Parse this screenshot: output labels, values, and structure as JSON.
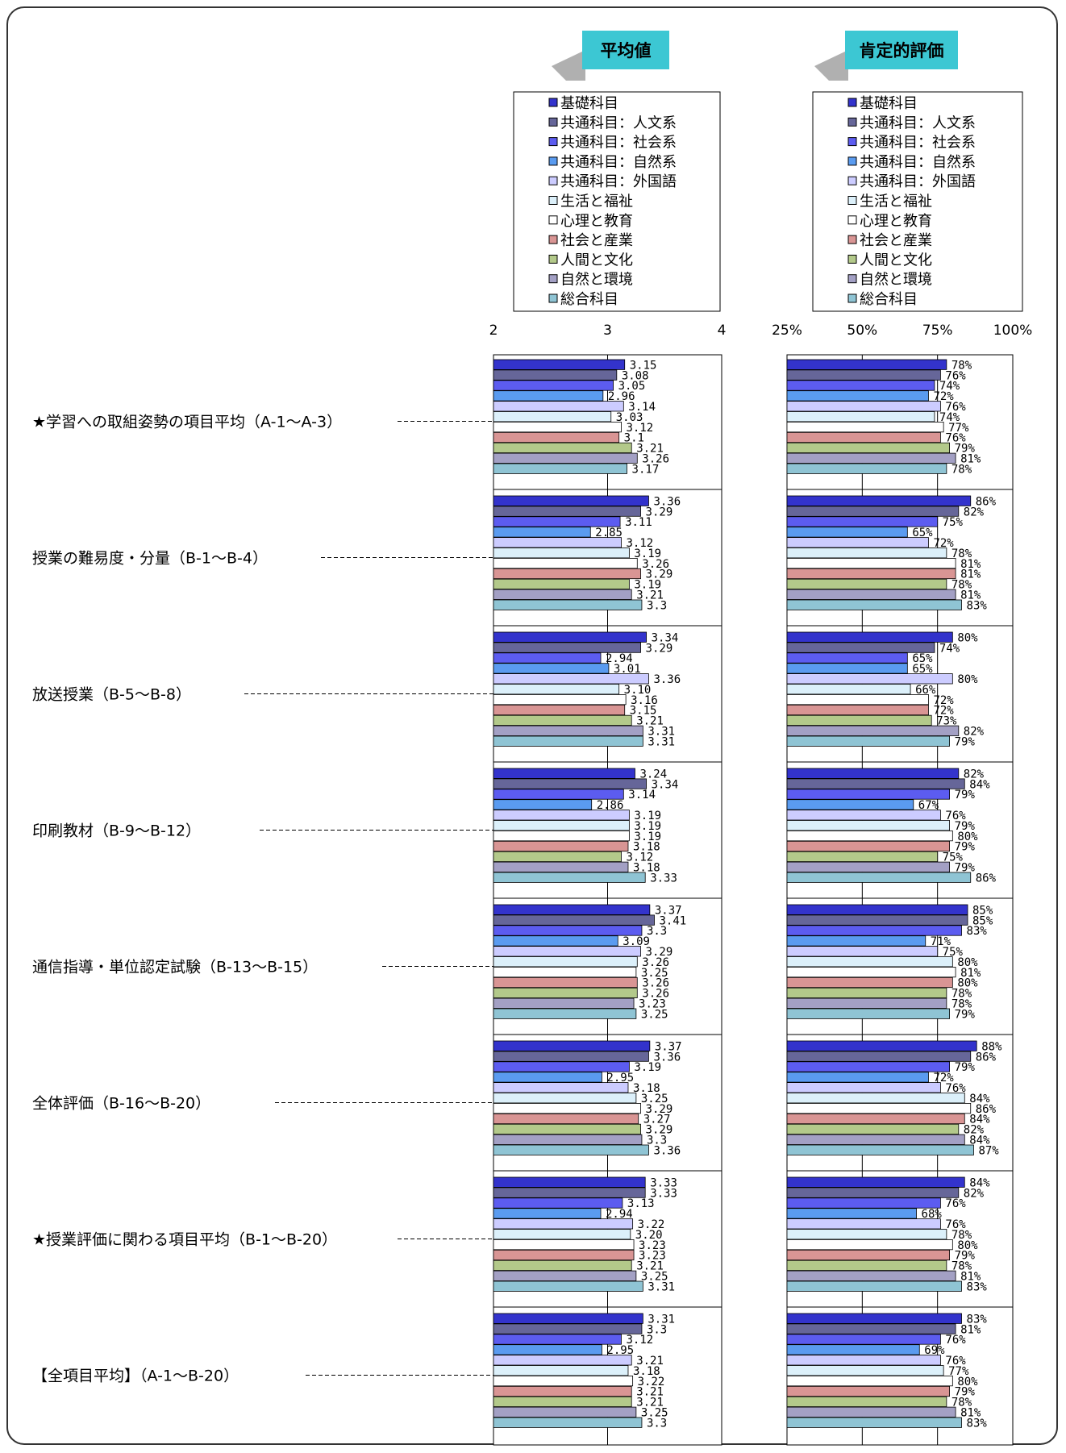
{
  "chart_data": [
    {
      "type": "bar",
      "orientation": "horizontal",
      "title": "平均値",
      "xlim": [
        2,
        4
      ],
      "ticks": [
        "2",
        "3",
        "4"
      ],
      "categories": [
        "★学習への取組姿勢の項目平均（A-1～A-3）",
        "授業の難易度・分量（B-1～B-4）",
        "放送授業（B-5～B-8）",
        "印刷教材（B-9～B-12）",
        "通信指導・単位認定試験（B-13～B-15）",
        "全体評価（B-16～B-20）",
        "★授業評価に関わる項目平均（B-1～B-20）",
        "【全項目平均】（A-1～B-20）"
      ],
      "series": [
        {
          "name": "基礎科目",
          "color": "#3333cc",
          "values": [
            3.15,
            3.36,
            3.34,
            3.24,
            3.37,
            3.37,
            3.33,
            3.31
          ],
          "labels": [
            "3.15",
            "3.36",
            "3.34",
            "3.24",
            "3.37",
            "3.37",
            "3.33",
            "3.31"
          ]
        },
        {
          "name": "共通科目：人文系",
          "color": "#666699",
          "values": [
            3.08,
            3.29,
            3.29,
            3.34,
            3.41,
            3.36,
            3.33,
            3.3
          ],
          "labels": [
            "3.08",
            "3.29",
            "3.29",
            "3.34",
            "3.41",
            "3.36",
            "3.33",
            "3.3"
          ]
        },
        {
          "name": "共通科目：社会系",
          "color": "#5c5cf0",
          "values": [
            3.05,
            3.11,
            2.94,
            3.14,
            3.3,
            3.19,
            3.13,
            3.12
          ],
          "labels": [
            "3.05",
            "3.11",
            "2.94",
            "3.14",
            "3.3",
            "3.19",
            "3.13",
            "3.12"
          ]
        },
        {
          "name": "共通科目：自然系",
          "color": "#5a9bf0",
          "values": [
            2.96,
            2.85,
            3.01,
            2.86,
            3.09,
            2.95,
            2.94,
            2.95
          ],
          "labels": [
            "2.96",
            "2.85",
            "3.01",
            "2.86",
            "3.09",
            "2.95",
            "2.94",
            "2.95"
          ]
        },
        {
          "name": "共通科目：外国語",
          "color": "#ccccff",
          "values": [
            3.14,
            3.12,
            3.36,
            3.19,
            3.29,
            3.18,
            3.22,
            3.21
          ],
          "labels": [
            "3.14",
            "3.12",
            "3.36",
            "3.19",
            "3.29",
            "3.18",
            "3.22",
            "3.21"
          ]
        },
        {
          "name": "生活と福祉",
          "color": "#dcf0fa",
          "values": [
            3.03,
            3.19,
            3.1,
            3.19,
            3.26,
            3.25,
            3.2,
            3.18
          ],
          "labels": [
            "3.03",
            "3.19",
            "3.10",
            "3.19",
            "3.26",
            "3.25",
            "3.20",
            "3.18"
          ]
        },
        {
          "name": "心理と教育",
          "color": "#ffffff",
          "values": [
            3.12,
            3.26,
            3.16,
            3.19,
            3.25,
            3.29,
            3.23,
            3.22
          ],
          "labels": [
            "3.12",
            "3.26",
            "3.16",
            "3.19",
            "3.25",
            "3.29",
            "3.23",
            "3.22"
          ]
        },
        {
          "name": "社会と産業",
          "color": "#d99594",
          "values": [
            3.1,
            3.29,
            3.15,
            3.18,
            3.26,
            3.27,
            3.23,
            3.21
          ],
          "labels": [
            "3.1",
            "3.29",
            "3.15",
            "3.18",
            "3.26",
            "3.27",
            "3.23",
            "3.21"
          ]
        },
        {
          "name": "人間と文化",
          "color": "#b3c98a",
          "values": [
            3.21,
            3.19,
            3.21,
            3.12,
            3.26,
            3.29,
            3.21,
            3.21
          ],
          "labels": [
            "3.21",
            "3.19",
            "3.21",
            "3.12",
            "3.26",
            "3.29",
            "3.21",
            "3.21"
          ]
        },
        {
          "name": "自然と環境",
          "color": "#a3a0c4",
          "values": [
            3.26,
            3.21,
            3.31,
            3.18,
            3.23,
            3.3,
            3.25,
            3.25
          ],
          "labels": [
            "3.26",
            "3.21",
            "3.31",
            "3.18",
            "3.23",
            "3.3",
            "3.25",
            "3.25"
          ]
        },
        {
          "name": "総合科目",
          "color": "#8fc4d4",
          "values": [
            3.17,
            3.3,
            3.31,
            3.33,
            3.25,
            3.36,
            3.31,
            3.3
          ],
          "labels": [
            "3.17",
            "3.3",
            "3.31",
            "3.33",
            "3.25",
            "3.36",
            "3.31",
            "3.3"
          ]
        }
      ]
    },
    {
      "type": "bar",
      "orientation": "horizontal",
      "title": "肯定的評価",
      "xlim": [
        25,
        100
      ],
      "ticks": [
        "25%",
        "50%",
        "75%",
        "100%"
      ],
      "series": [
        {
          "name": "基礎科目",
          "color": "#3333cc",
          "values": [
            78,
            86,
            80,
            82,
            85,
            88,
            84,
            83
          ]
        },
        {
          "name": "共通科目：人文系",
          "color": "#666699",
          "values": [
            76,
            82,
            74,
            84,
            85,
            86,
            82,
            81
          ]
        },
        {
          "name": "共通科目：社会系",
          "color": "#5c5cf0",
          "values": [
            74,
            75,
            65,
            79,
            83,
            79,
            76,
            76
          ]
        },
        {
          "name": "共通科目：自然系",
          "color": "#5a9bf0",
          "values": [
            72,
            65,
            65,
            67,
            71,
            72,
            68,
            69
          ]
        },
        {
          "name": "共通科目：外国語",
          "color": "#ccccff",
          "values": [
            76,
            72,
            80,
            76,
            75,
            76,
            76,
            76
          ]
        },
        {
          "name": "生活と福祉",
          "color": "#dcf0fa",
          "values": [
            74,
            78,
            66,
            79,
            80,
            84,
            78,
            77
          ]
        },
        {
          "name": "心理と教育",
          "color": "#ffffff",
          "values": [
            77,
            81,
            72,
            80,
            81,
            86,
            80,
            80
          ]
        },
        {
          "name": "社会と産業",
          "color": "#d99594",
          "values": [
            76,
            81,
            72,
            79,
            80,
            84,
            79,
            79
          ]
        },
        {
          "name": "人間と文化",
          "color": "#b3c98a",
          "values": [
            79,
            78,
            73,
            75,
            78,
            82,
            78,
            78
          ]
        },
        {
          "name": "自然と環境",
          "color": "#a3a0c4",
          "values": [
            81,
            81,
            82,
            79,
            78,
            84,
            81,
            81
          ]
        },
        {
          "name": "総合科目",
          "color": "#8fc4d4",
          "values": [
            78,
            83,
            79,
            86,
            79,
            87,
            83,
            83
          ]
        }
      ]
    }
  ]
}
